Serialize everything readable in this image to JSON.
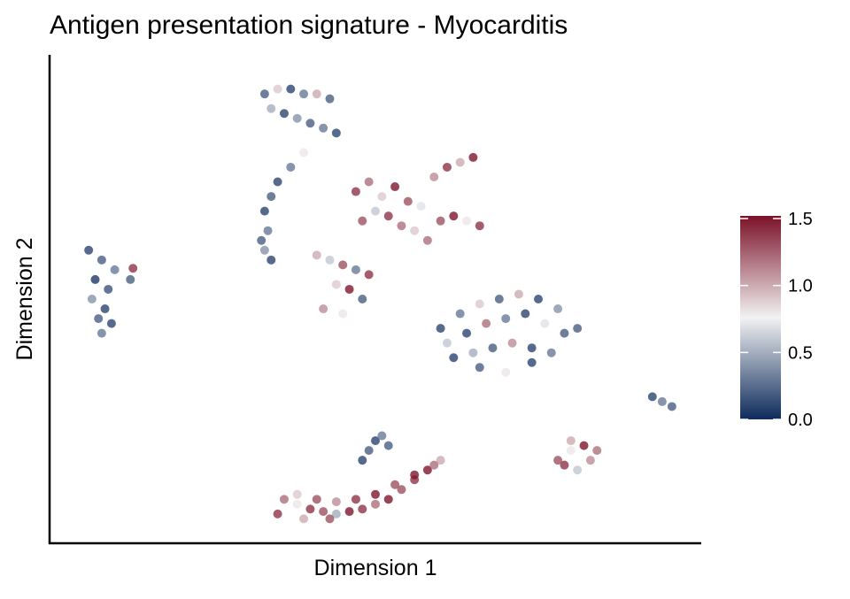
{
  "chart_data": {
    "type": "scatter",
    "title": "Antigen presentation signature - Myocarditis",
    "x_label": "Dimension 1",
    "y_label": "Dimension 2",
    "xlim": [
      0,
      100
    ],
    "ylim": [
      0,
      100
    ],
    "x": [
      6,
      8,
      10,
      7,
      9,
      6.5,
      8.5,
      7.5,
      9.5,
      8,
      12.8,
      12.4,
      33,
      35,
      37,
      39,
      41,
      43,
      34,
      36,
      38,
      40,
      42,
      44,
      39,
      37,
      35,
      34,
      33,
      33.5,
      32.5,
      33,
      34,
      47,
      49,
      51,
      53,
      55,
      57,
      59,
      61,
      63,
      65,
      48,
      50,
      52,
      54,
      56,
      60,
      62,
      64,
      66,
      58,
      41,
      43,
      45,
      47,
      49,
      44,
      46,
      48,
      42,
      45,
      60,
      63,
      66,
      69,
      72,
      75,
      78,
      81,
      61,
      64,
      67,
      70,
      73,
      76,
      79,
      62,
      65,
      68,
      71,
      74,
      77,
      66,
      70,
      74,
      92.5,
      94,
      95.5,
      78,
      80,
      82,
      84,
      79,
      81,
      83,
      80,
      36,
      38,
      40,
      42,
      44,
      46,
      48,
      50,
      52,
      54,
      56,
      58,
      60,
      38,
      41,
      44,
      47,
      50,
      53,
      56,
      59,
      35,
      39,
      43,
      48,
      49,
      50,
      51,
      52
    ],
    "y": [
      60,
      58,
      56,
      54,
      52,
      50,
      48,
      46,
      45,
      43,
      56.3,
      54,
      92,
      93,
      93,
      92,
      92,
      91,
      89,
      88,
      87,
      86,
      85,
      84,
      80,
      77,
      74,
      71,
      68,
      64,
      62,
      60,
      58,
      72,
      74,
      71,
      73,
      70,
      69,
      75,
      77,
      78,
      79,
      66,
      68,
      67,
      65,
      64,
      66,
      67,
      66,
      65,
      62,
      59,
      58,
      57,
      56,
      55,
      53,
      52,
      50,
      48,
      47,
      44,
      47,
      49,
      50,
      51,
      50,
      48,
      44,
      41,
      43,
      45,
      46,
      47,
      45,
      43,
      38,
      39,
      40,
      41,
      40,
      39,
      36,
      35,
      37,
      30,
      29,
      28,
      17,
      19,
      20,
      19,
      16,
      15,
      17,
      21,
      9,
      8,
      7,
      6.5,
      6,
      6.5,
      7,
      8,
      9,
      11,
      13,
      15,
      17,
      10,
      9,
      8.5,
      9,
      10,
      12,
      14,
      16,
      6,
      5,
      5,
      17,
      19,
      21,
      22,
      20
    ],
    "values": [
      0.1,
      0.2,
      0.3,
      0.05,
      0.15,
      0.4,
      0.1,
      0.2,
      0.1,
      0.3,
      1.4,
      0.2,
      0.2,
      0.9,
      0.1,
      0.3,
      1.0,
      0.2,
      0.5,
      0.1,
      0.4,
      0.2,
      0.3,
      0.1,
      0.8,
      0.3,
      0.1,
      0.2,
      0.1,
      0.3,
      0.2,
      0.4,
      0.1,
      1.4,
      1.2,
      0.9,
      1.5,
      1.3,
      0.7,
      1.1,
      1.4,
      1.0,
      1.5,
      1.3,
      0.6,
      1.4,
      1.2,
      0.9,
      1.3,
      1.5,
      0.8,
      1.4,
      1.2,
      1.0,
      0.6,
      1.3,
      0.3,
      1.4,
      0.9,
      1.5,
      0.2,
      1.1,
      0.8,
      0.1,
      0.3,
      0.9,
      0.2,
      1.0,
      0.1,
      0.4,
      0.2,
      0.6,
      0.1,
      1.2,
      0.3,
      0.1,
      0.7,
      0.2,
      0.1,
      0.5,
      0.2,
      1.1,
      0.1,
      0.3,
      0.2,
      0.8,
      0.1,
      0.1,
      0.3,
      0.2,
      1.3,
      0.8,
      1.5,
      1.2,
      1.4,
      0.6,
      1.1,
      1.0,
      1.2,
      0.8,
      1.4,
      1.3,
      0.5,
      1.5,
      1.4,
      1.2,
      1.5,
      1.3,
      1.4,
      1.5,
      1.0,
      0.9,
      1.3,
      1.1,
      1.4,
      1.5,
      1.3,
      1.5,
      1.2,
      1.4,
      1.0,
      1.3,
      0.1,
      0.2,
      0.1,
      0.3,
      0.2
    ],
    "colors": [
      "#0e2b5c",
      "#f2f2f2",
      "#7b1128"
    ],
    "clim": [
      0,
      1.52
    ],
    "cticks": [
      {
        "value": 0,
        "label": "0.0"
      },
      {
        "value": 0.5,
        "label": "0.5"
      },
      {
        "value": 1,
        "label": "1.0"
      },
      {
        "value": 1.5,
        "label": "1.5"
      }
    ]
  }
}
